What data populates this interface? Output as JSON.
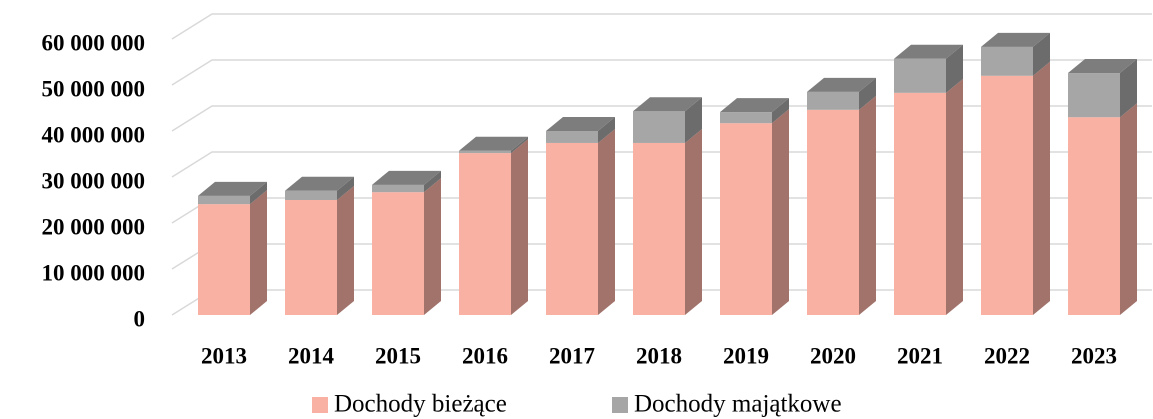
{
  "chart_data": {
    "type": "bar3d_stacked",
    "categories": [
      "2013",
      "2014",
      "2015",
      "2016",
      "2017",
      "2018",
      "2019",
      "2020",
      "2021",
      "2022",
      "2023"
    ],
    "series": [
      {
        "name": "Dochody bieżące",
        "color": "#f9b1a4",
        "values": [
          24100000,
          25000000,
          26700000,
          35200000,
          37400000,
          37400000,
          41700000,
          44600000,
          48300000,
          52000000,
          43000000
        ]
      },
      {
        "name": "Dochody majątkowe",
        "color": "#a6a6a6",
        "values": [
          1800000,
          2000000,
          1600000,
          500000,
          2600000,
          6900000,
          2400000,
          3900000,
          7400000,
          6300000,
          9600000
        ]
      }
    ],
    "ylim": [
      0,
      70000000
    ],
    "yticks": [
      0,
      {
        "value": 10000000,
        "label": "10 000 000"
      },
      {
        "value": 20000000,
        "label": "20 000 000"
      },
      {
        "value": 30000000,
        "label": "30 000 000"
      },
      {
        "value": 40000000,
        "label": "40 000 000"
      },
      {
        "value": 50000000,
        "label": "50 000 000"
      },
      {
        "value": 60000000,
        "label": "60 000 000"
      }
    ],
    "grid": true,
    "legend": "bottom"
  }
}
